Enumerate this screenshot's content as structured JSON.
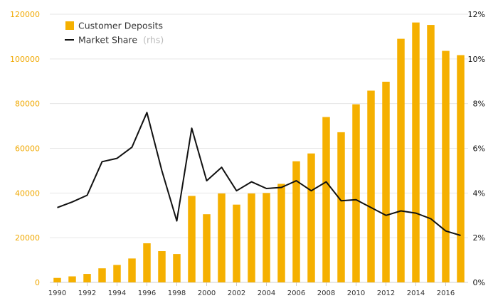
{
  "chart_data": {
    "type": "bar+line",
    "title": "",
    "x": [
      1990,
      1991,
      1992,
      1993,
      1994,
      1995,
      1996,
      1997,
      1998,
      1999,
      2000,
      2001,
      2002,
      2003,
      2004,
      2005,
      2006,
      2007,
      2008,
      2009,
      2010,
      2011,
      2012,
      2013,
      2014,
      2015,
      2016,
      2017
    ],
    "x_tick_labels": [
      "1990",
      "1992",
      "1994",
      "1996",
      "1998",
      "2000",
      "2002",
      "2004",
      "2006",
      "2008",
      "2010",
      "2012",
      "2014",
      "2016"
    ],
    "series": [
      {
        "name": "Customer Deposits",
        "type": "bar",
        "axis": "left",
        "color": "#f5b000",
        "values": [
          2000,
          2700,
          3800,
          6300,
          7800,
          10700,
          17500,
          14000,
          12700,
          38700,
          30500,
          39800,
          34800,
          39800,
          40000,
          44100,
          54200,
          57700,
          74000,
          67200,
          79700,
          85800,
          89800,
          109000,
          116300,
          115200,
          103600,
          101700
        ]
      },
      {
        "name": "Market Share",
        "name_suffix": "(rhs)",
        "type": "line",
        "axis": "right",
        "color": "#111111",
        "values": [
          3.35,
          3.6,
          3.9,
          5.4,
          5.55,
          6.05,
          7.6,
          5.0,
          2.75,
          6.9,
          4.55,
          5.15,
          4.1,
          4.5,
          4.2,
          4.25,
          4.55,
          4.1,
          4.5,
          3.65,
          3.7,
          3.35,
          3.0,
          3.2,
          3.1,
          2.85,
          2.3,
          2.1
        ]
      }
    ],
    "y_left": {
      "min": 0,
      "max": 120000,
      "ticks": [
        "0",
        "20000",
        "40000",
        "60000",
        "80000",
        "100000",
        "120000"
      ],
      "color": "#f0a800"
    },
    "y_right": {
      "min": 0,
      "max": 12,
      "ticks": [
        "0%",
        "2%",
        "4%",
        "6%",
        "8%",
        "10%",
        "12%"
      ],
      "color": "#111111"
    },
    "grid": true,
    "legend_position": "top-left"
  }
}
